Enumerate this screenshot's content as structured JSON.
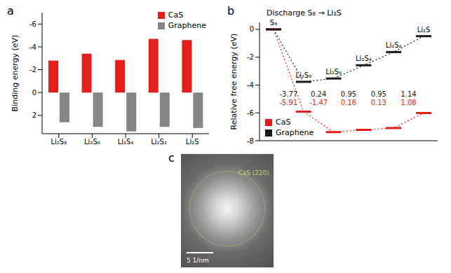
{
  "chart_data": [
    {
      "panel": "a",
      "type": "bar",
      "y_label": "Binding energy (eV)",
      "categories": [
        "Li₂S₈",
        "Li₂S₆",
        "Li₂S₄",
        "Li₂S₂",
        "Li₂S"
      ],
      "series": [
        {
          "name": "CaS",
          "color": "#e41f1b",
          "values": [
            -2.8,
            -3.4,
            -2.85,
            -4.7,
            -4.6
          ]
        },
        {
          "name": "Graphene",
          "color": "#858585",
          "values": [
            2.6,
            3.0,
            3.4,
            3.0,
            3.1
          ]
        }
      ],
      "ylim": [
        3.6,
        -7
      ],
      "yticks": [
        -6,
        -4,
        -2,
        0,
        2
      ],
      "legend": "upper right",
      "grid": false
    },
    {
      "panel": "b",
      "type": "line",
      "title": "Discharge S₈ → Li₂S",
      "y_label": "Relative free energy (eV)",
      "categories": [
        "S₈",
        "Li₂S₈",
        "Li₂S₆",
        "Li₂S₄",
        "Li₂S₂",
        "Li₂S"
      ],
      "series": [
        {
          "name": "CaS",
          "color": "#e41f1b",
          "values": [
            0,
            -5.91,
            -7.38,
            -7.22,
            -7.09,
            -6.01
          ],
          "steps": [
            -5.91,
            -1.47,
            0.16,
            0.13,
            1.08
          ],
          "marker": "level",
          "line_style": "dotted"
        },
        {
          "name": "Graphene",
          "color": "#1a1a1a",
          "values": [
            0,
            -3.77,
            -3.53,
            -2.58,
            -1.63,
            -0.49
          ],
          "steps": [
            -3.77,
            0.24,
            0.95,
            0.95,
            1.14
          ],
          "marker": "level",
          "line_style": "dotted"
        }
      ],
      "ylim": [
        -8,
        0.5
      ],
      "yticks": [
        -8,
        -6,
        -4,
        -2,
        0
      ],
      "legend": "lower left",
      "tick_labels": "y",
      "grid": false
    },
    {
      "panel": "c",
      "type": "image",
      "annotations": [
        "CaS (220)"
      ],
      "scale_bar": "5 1/nm"
    }
  ]
}
